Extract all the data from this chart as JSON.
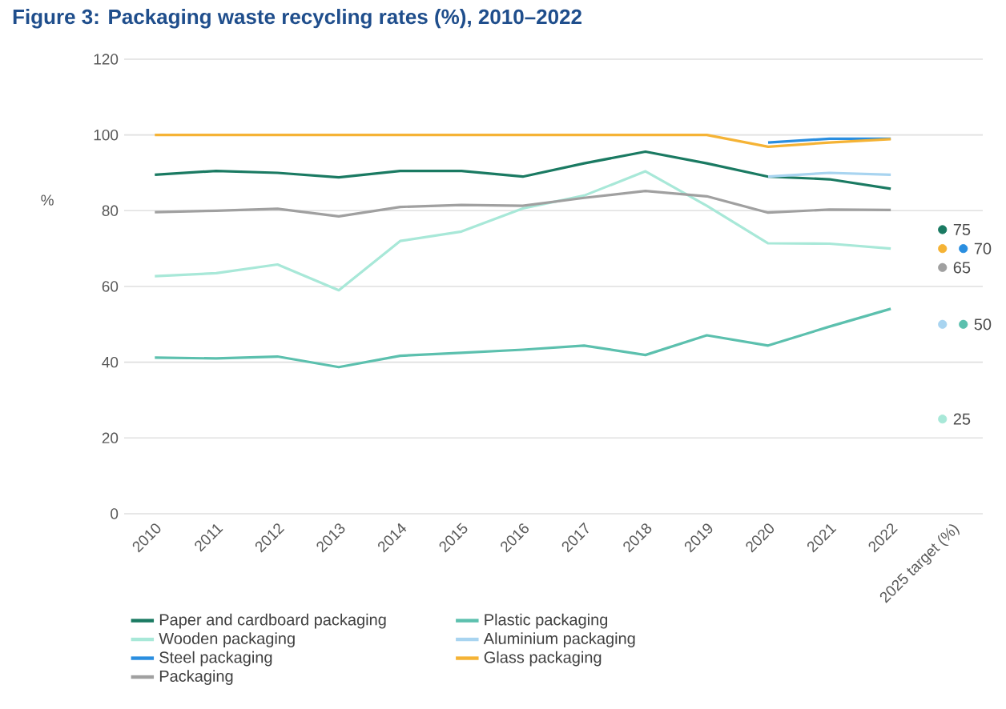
{
  "chart_data": {
    "type": "line",
    "title": "Figure 3: Packaging waste recycling rates (%), 2010–2022",
    "ylabel": "%",
    "categories": [
      "2010",
      "2011",
      "2012",
      "2013",
      "2014",
      "2015",
      "2016",
      "2017",
      "2018",
      "2019",
      "2020",
      "2021",
      "2022",
      "2025 target (%)"
    ],
    "ylim": [
      0,
      120
    ],
    "yticks": [
      0,
      20,
      40,
      60,
      80,
      100,
      120
    ],
    "grid": "y",
    "legend": "bottom",
    "marker": "none",
    "line_style": "solid",
    "series": [
      {
        "name": "Paper and cardboard packaging",
        "color": "#1a7a62",
        "values": [
          89.5,
          90.5,
          90,
          88.8,
          90.5,
          90.5,
          89,
          92.5,
          95.6,
          92.5,
          89,
          88.3,
          85.8,
          null
        ]
      },
      {
        "name": "Plastic packaging",
        "color": "#5cc0ae",
        "values": [
          41.2,
          41,
          41.5,
          38.7,
          41.7,
          42.5,
          43.3,
          44.4,
          41.9,
          47.1,
          44.4,
          49.4,
          54.1,
          null
        ]
      },
      {
        "name": "Wooden packaging",
        "color": "#a8e8d8",
        "values": [
          62.7,
          63.5,
          65.8,
          59,
          72,
          74.5,
          80.6,
          84,
          90.4,
          81.3,
          71.4,
          71.3,
          70,
          null
        ]
      },
      {
        "name": "Aluminium packaging",
        "color": "#a8d4f0",
        "values": [
          null,
          null,
          null,
          null,
          null,
          null,
          null,
          null,
          null,
          null,
          89,
          90,
          89.5,
          null
        ]
      },
      {
        "name": "Steel packaging",
        "color": "#2a8ee0",
        "values": [
          null,
          null,
          null,
          null,
          null,
          null,
          null,
          null,
          null,
          null,
          98,
          99,
          99,
          null
        ]
      },
      {
        "name": "Glass packaging",
        "color": "#f5b335",
        "values": [
          100,
          100,
          100,
          100,
          100,
          100,
          100,
          100,
          100,
          100,
          96.9,
          98,
          98.9,
          null
        ]
      },
      {
        "name": "Packaging",
        "color": "#a0a0a0",
        "values": [
          79.6,
          80,
          80.5,
          78.5,
          81,
          81.5,
          81.3,
          83.4,
          85.2,
          83.8,
          79.5,
          80.3,
          80.2,
          null
        ]
      },
      {
        "type": "scatter",
        "marker": "circle",
        "x": [
          "2025 target (%)",
          "2025 target (%)",
          "2025 target (%)",
          "2025 target (%)",
          "2025 target (%)",
          "2025 target (%)",
          "2025 target (%)"
        ],
        "values": [
          75,
          70,
          70,
          65,
          50,
          50,
          25
        ],
        "colors": [
          "#1a7a62",
          "#f5b335",
          "#2a8ee0",
          "#a0a0a0",
          "#a8d4f0",
          "#5cc0ae",
          "#a8e8d8"
        ],
        "value_labels": [
          "75",
          null,
          "70",
          "65",
          null,
          "50",
          "25"
        ]
      }
    ]
  }
}
